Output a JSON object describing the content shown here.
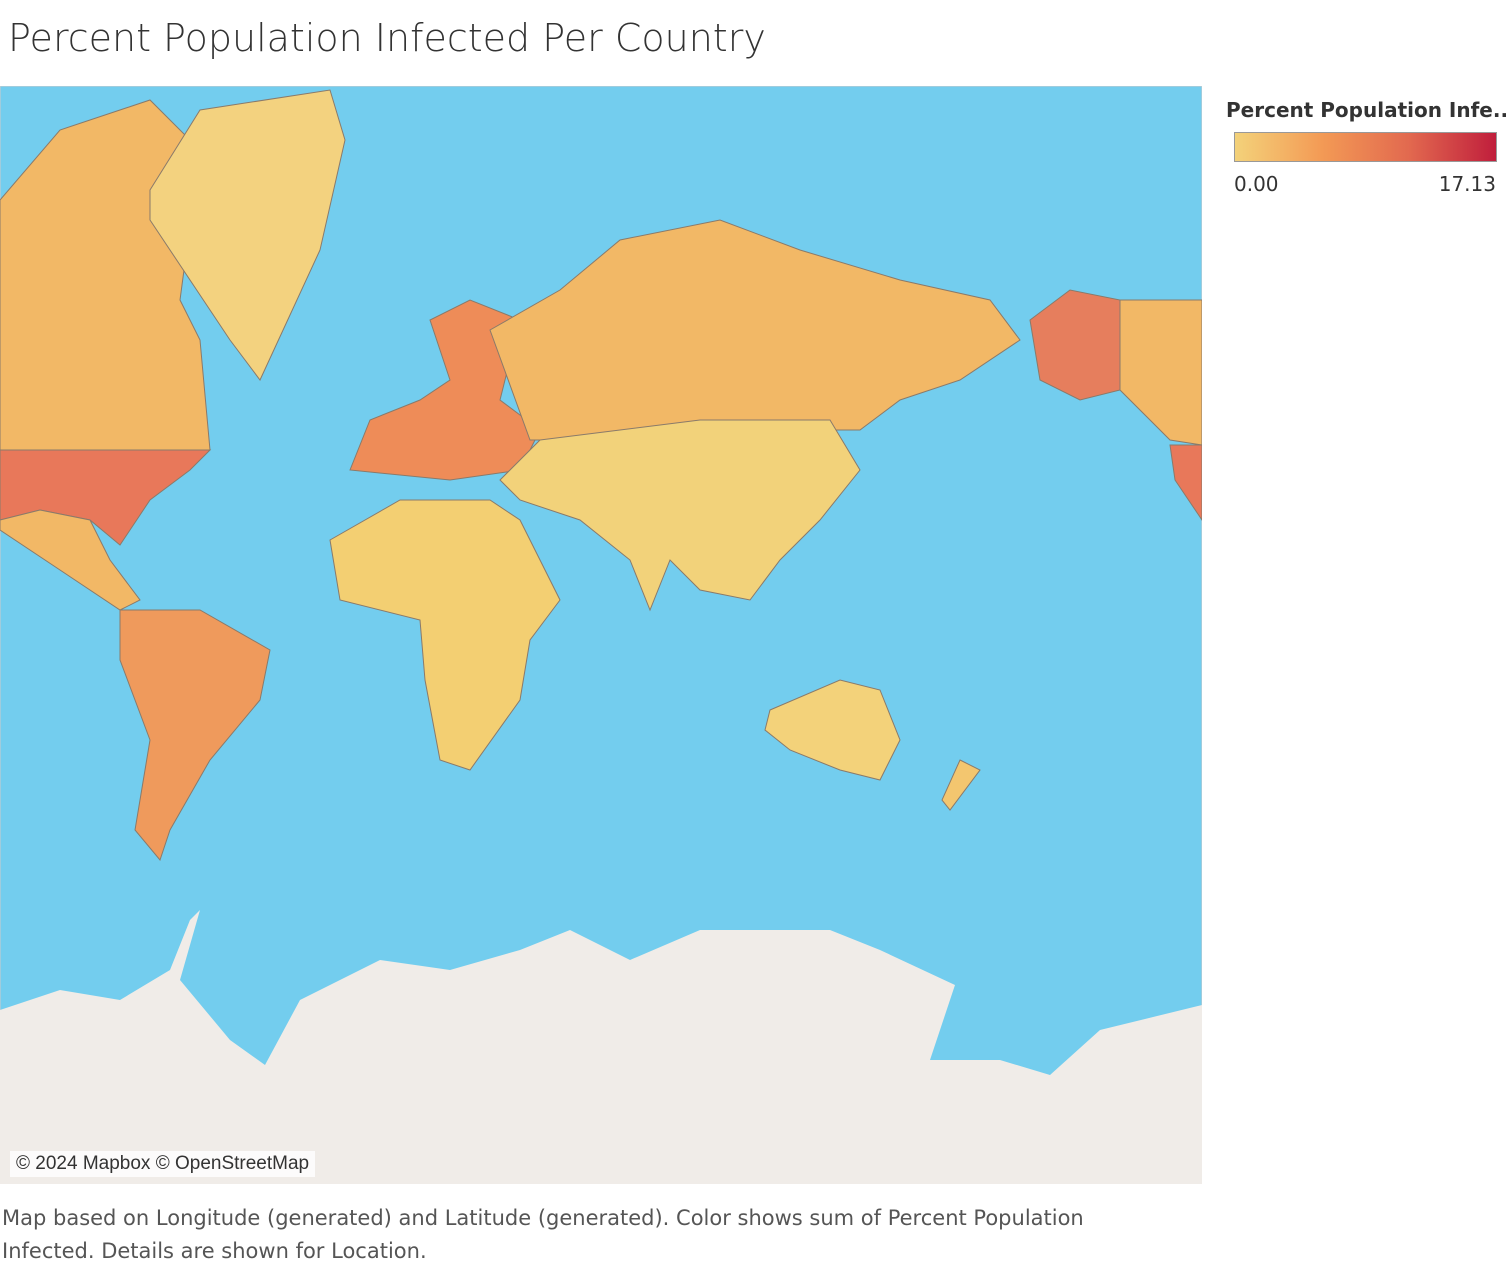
{
  "title": "Percent Population Infected Per Country",
  "legend": {
    "title": "Percent Population Infe..",
    "min": {
      "value": 0,
      "label": "0.00"
    },
    "max": 17.13
  },
  "attribution": "© 2024 Mapbox © OpenStreetMap",
  "caption": "Map based on Longitude (generated) and Latitude (generated).  Color shows sum of Percent Population Infected.  Details are shown for Location."
}
